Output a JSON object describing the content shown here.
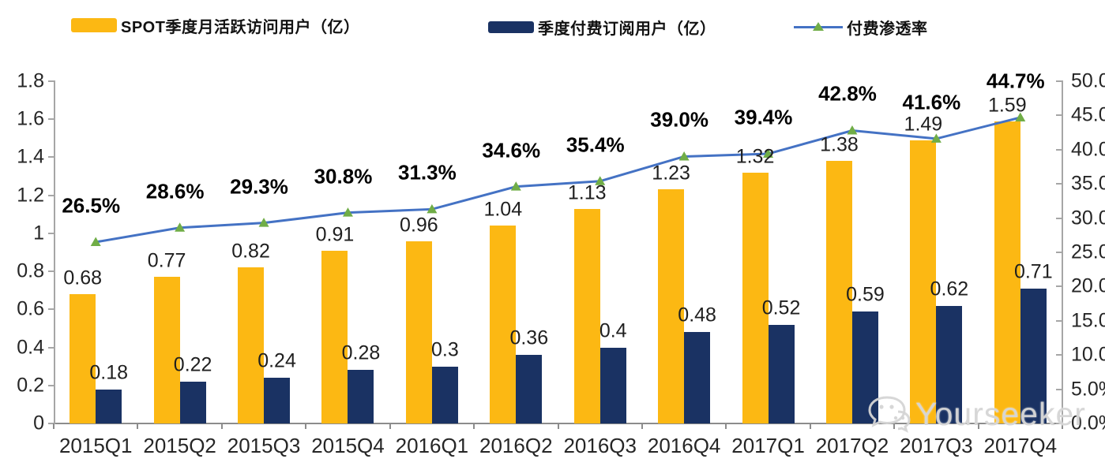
{
  "legend": {
    "mau": {
      "label": "SPOT季度月活跃访问用户（亿）",
      "color": "#FCB813"
    },
    "subs": {
      "label": "季度付费订阅用户（亿）",
      "color": "#1A3263"
    },
    "penetration": {
      "label": "付费渗透率",
      "line_color": "#4472C4",
      "marker_color": "#70AD47"
    }
  },
  "watermark": {
    "icon": "wechat-icon",
    "text": "Yourseeker"
  },
  "chart_data": {
    "type": "bar+line combo",
    "title": "",
    "categories": [
      "2015Q1",
      "2015Q2",
      "2015Q3",
      "2015Q4",
      "2016Q1",
      "2016Q2",
      "2016Q3",
      "2016Q4",
      "2017Q1",
      "2017Q2",
      "2017Q3",
      "2017Q4"
    ],
    "series": [
      {
        "name": "SPOT季度月活跃访问用户（亿）",
        "type": "bar",
        "axis": "left",
        "color": "#FCB813",
        "values": [
          0.68,
          0.77,
          0.82,
          0.91,
          0.96,
          1.04,
          1.13,
          1.23,
          1.32,
          1.38,
          1.49,
          1.59
        ],
        "labels": [
          "0.68",
          "0.77",
          "0.82",
          "0.91",
          "0.96",
          "1.04",
          "1.13",
          "1.23",
          "1.32",
          "1.38",
          "1.49",
          "1.59"
        ]
      },
      {
        "name": "季度付费订阅用户（亿）",
        "type": "bar",
        "axis": "left",
        "color": "#1A3263",
        "values": [
          0.18,
          0.22,
          0.24,
          0.28,
          0.3,
          0.36,
          0.4,
          0.48,
          0.52,
          0.59,
          0.62,
          0.71
        ],
        "labels": [
          "0.18",
          "0.22",
          "0.24",
          "0.28",
          "0.3",
          "0.36",
          "0.4",
          "0.48",
          "0.52",
          "0.59",
          "0.62",
          "0.71"
        ]
      },
      {
        "name": "付费渗透率",
        "type": "line",
        "axis": "right",
        "color": "#4472C4",
        "marker": "triangle",
        "marker_color": "#70AD47",
        "values": [
          26.5,
          28.6,
          29.3,
          30.8,
          31.3,
          34.6,
          35.4,
          39.0,
          39.4,
          42.8,
          41.6,
          44.7
        ],
        "labels": [
          "26.5%",
          "28.6%",
          "29.3%",
          "30.8%",
          "31.3%",
          "34.6%",
          "35.4%",
          "39.0%",
          "39.4%",
          "42.8%",
          "41.6%",
          "44.7%"
        ]
      }
    ],
    "y_axis_left": {
      "min": 0,
      "max": 1.8,
      "ticks": [
        "0",
        "0.2",
        "0.4",
        "0.6",
        "0.8",
        "1",
        "1.2",
        "1.4",
        "1.6",
        "1.8"
      ]
    },
    "y_axis_right": {
      "min": 0,
      "max": 50,
      "ticks": [
        "0.0%",
        "5.0%",
        "10.0%",
        "15.0%",
        "20.0%",
        "25.0%",
        "30.0%",
        "35.0%",
        "40.0%",
        "45.0%",
        "50.0%"
      ]
    },
    "grid": false,
    "legend_position": "top"
  }
}
